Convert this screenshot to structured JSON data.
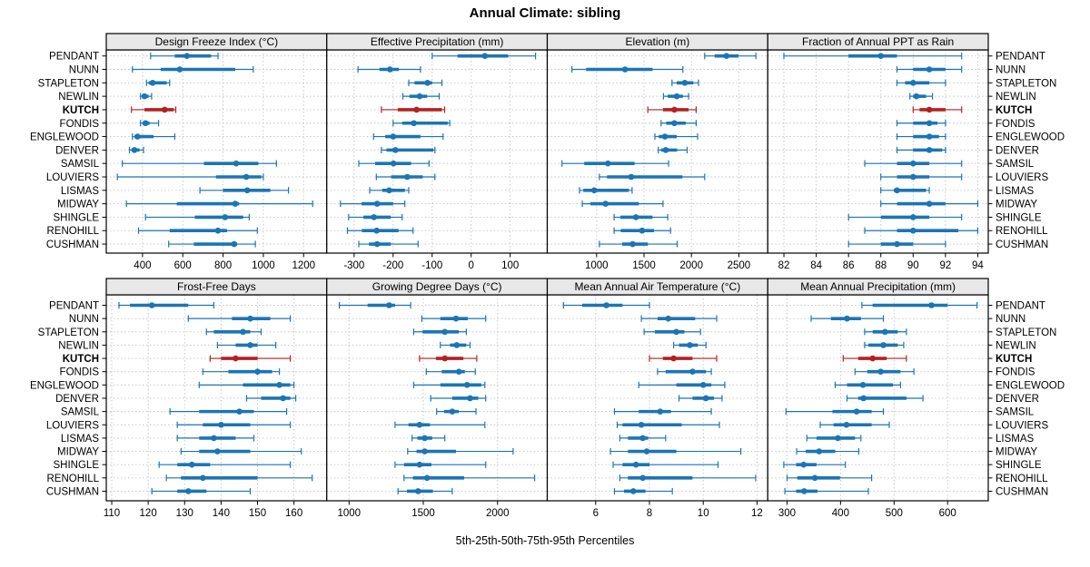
{
  "title": "Annual Climate: sibling",
  "x_axis_label": "5th-25th-50th-75th-95th Percentiles",
  "stations": [
    "PENDANT",
    "NUNN",
    "STAPLETON",
    "NEWLIN",
    "KUTCH",
    "FONDIS",
    "ENGLEWOOD",
    "DENVER",
    "SAMSIL",
    "LOUVIERS",
    "LISMAS",
    "MIDWAY",
    "SHINGLE",
    "RENOHILL",
    "CUSHMAN"
  ],
  "highlighted_station": "KUTCH",
  "percentile_levels": [
    5,
    25,
    50,
    75,
    95
  ],
  "colors": {
    "series": "#1b75b5",
    "highlight": "#b22222",
    "grid": "#c3c3c3",
    "strip_bg": "#e8e8e8",
    "border": "#000000",
    "background": "#ffffff"
  },
  "chart_data": [
    {
      "type": "dotplot-interval",
      "row": 0,
      "col": 0,
      "title": "Design Freeze Index (°C)",
      "xlim": [
        220,
        1315
      ],
      "ticks": [
        400,
        600,
        800,
        1000,
        1200
      ],
      "series": [
        [
          440,
          560,
          620,
          740,
          775
        ],
        [
          350,
          490,
          585,
          860,
          950
        ],
        [
          420,
          430,
          450,
          520,
          535
        ],
        [
          390,
          400,
          410,
          430,
          445
        ],
        [
          345,
          410,
          510,
          555,
          565
        ],
        [
          390,
          400,
          415,
          435,
          480
        ],
        [
          350,
          360,
          375,
          455,
          560
        ],
        [
          335,
          345,
          360,
          385,
          405
        ],
        [
          300,
          705,
          865,
          975,
          1065
        ],
        [
          275,
          765,
          915,
          990,
          1000
        ],
        [
          685,
          800,
          920,
          1035,
          1125
        ],
        [
          320,
          570,
          860,
          880,
          1245
        ],
        [
          415,
          660,
          810,
          900,
          930
        ],
        [
          380,
          535,
          775,
          820,
          970
        ],
        [
          530,
          655,
          855,
          870,
          960
        ]
      ]
    },
    {
      "type": "dotplot-interval",
      "row": 0,
      "col": 1,
      "title": "Effective Precipitation (mm)",
      "xlim": [
        -370,
        195
      ],
      "ticks": [
        -300,
        -200,
        -100,
        0,
        100
      ],
      "series": [
        [
          -100,
          -35,
          35,
          95,
          165
        ],
        [
          -290,
          -235,
          -208,
          -185,
          -130
        ],
        [
          -160,
          -145,
          -112,
          -100,
          -75
        ],
        [
          -175,
          -158,
          -132,
          -113,
          -82
        ],
        [
          -230,
          -188,
          -140,
          -75,
          -68
        ],
        [
          -200,
          -177,
          -147,
          -60,
          -55
        ],
        [
          -250,
          -220,
          -200,
          -130,
          -72
        ],
        [
          -230,
          -217,
          -194,
          -97,
          -93
        ],
        [
          -288,
          -246,
          -199,
          -154,
          -108
        ],
        [
          -243,
          -205,
          -164,
          -124,
          -93
        ],
        [
          -260,
          -228,
          -210,
          -170,
          -160
        ],
        [
          -335,
          -281,
          -241,
          -200,
          -170
        ],
        [
          -314,
          -276,
          -249,
          -206,
          -177
        ],
        [
          -317,
          -280,
          -242,
          -186,
          -149
        ],
        [
          -288,
          -262,
          -241,
          -206,
          -136
        ]
      ]
    },
    {
      "type": "dotplot-interval",
      "row": 0,
      "col": 2,
      "title": "Elevation (m)",
      "xlim": [
        480,
        2805
      ],
      "ticks": [
        1000,
        1500,
        2000,
        2500
      ],
      "series": [
        [
          2140,
          2245,
          2370,
          2495,
          2680
        ],
        [
          740,
          890,
          1300,
          1590,
          1910
        ],
        [
          1795,
          1845,
          1930,
          2020,
          2075
        ],
        [
          1705,
          1750,
          1845,
          1910,
          1970
        ],
        [
          1540,
          1700,
          1820,
          1970,
          2050
        ],
        [
          1680,
          1735,
          1820,
          1940,
          2050
        ],
        [
          1615,
          1655,
          1720,
          1845,
          2065
        ],
        [
          1650,
          1680,
          1730,
          1850,
          1955
        ],
        [
          635,
          870,
          1120,
          1400,
          1760
        ],
        [
          1030,
          1110,
          1365,
          1905,
          2140
        ],
        [
          820,
          860,
          975,
          1340,
          1375
        ],
        [
          850,
          935,
          1095,
          1445,
          1700
        ],
        [
          1185,
          1250,
          1415,
          1590,
          1750
        ],
        [
          1185,
          1255,
          1480,
          1605,
          1780
        ],
        [
          1030,
          1270,
          1380,
          1540,
          1850
        ]
      ]
    },
    {
      "type": "dotplot-interval",
      "row": 0,
      "col": 3,
      "title": "Fraction of Annual PPT as Rain",
      "xlim": [
        81.0,
        94.65
      ],
      "ticks": [
        82,
        84,
        86,
        88,
        90,
        92,
        94
      ],
      "series": [
        [
          82,
          86,
          88,
          89,
          93
        ],
        [
          89,
          90,
          91,
          92,
          93
        ],
        [
          89,
          89.5,
          90,
          91,
          92
        ],
        [
          89.8,
          90,
          90.2,
          90.8,
          91.2
        ],
        [
          90,
          90.4,
          91,
          92,
          93
        ],
        [
          89,
          90,
          91,
          91.5,
          92
        ],
        [
          89,
          90,
          91,
          91.6,
          92
        ],
        [
          89,
          90,
          91,
          91.8,
          92
        ],
        [
          87,
          89,
          90,
          91,
          93
        ],
        [
          88,
          89,
          90,
          91,
          93
        ],
        [
          88,
          88.8,
          89,
          90.8,
          91
        ],
        [
          88,
          89,
          91,
          92,
          94
        ],
        [
          86,
          88,
          90,
          91,
          93
        ],
        [
          87,
          89,
          90,
          92.8,
          94
        ],
        [
          86,
          88,
          89,
          90,
          92
        ]
      ]
    },
    {
      "type": "dotplot-interval",
      "row": 1,
      "col": 0,
      "title": "Frost-Free Days",
      "xlim": [
        108.5,
        169
      ],
      "ticks": [
        110,
        120,
        130,
        140,
        150,
        160
      ],
      "series": [
        [
          112,
          115,
          121,
          131,
          138
        ],
        [
          131,
          143,
          148,
          153.5,
          159
        ],
        [
          136,
          138,
          146,
          148,
          151
        ],
        [
          139,
          144,
          148,
          150,
          155
        ],
        [
          137,
          140,
          144,
          150,
          159
        ],
        [
          135,
          142,
          150,
          154,
          156
        ],
        [
          134,
          146,
          156,
          159,
          160
        ],
        [
          147,
          151,
          157,
          159,
          160.5
        ],
        [
          126,
          134,
          145,
          149,
          158
        ],
        [
          128,
          135,
          140,
          148,
          159
        ],
        [
          128,
          134,
          138,
          144,
          149
        ],
        [
          129,
          134,
          139,
          148,
          162
        ],
        [
          123,
          128,
          132,
          137,
          159
        ],
        [
          125,
          129,
          135,
          150,
          165
        ],
        [
          121,
          128,
          131,
          136,
          148
        ]
      ]
    },
    {
      "type": "dotplot-interval",
      "row": 1,
      "col": 1,
      "title": "Growing Degree Days (°C)",
      "xlim": [
        850,
        2335
      ],
      "ticks": [
        1000,
        1500,
        2000
      ],
      "series": [
        [
          935,
          1125,
          1270,
          1310,
          1415
        ],
        [
          1490,
          1615,
          1720,
          1800,
          1920
        ],
        [
          1435,
          1495,
          1645,
          1740,
          1790
        ],
        [
          1615,
          1680,
          1725,
          1790,
          1815
        ],
        [
          1475,
          1585,
          1645,
          1770,
          1860
        ],
        [
          1520,
          1625,
          1740,
          1780,
          1850
        ],
        [
          1435,
          1615,
          1795,
          1890,
          1915
        ],
        [
          1550,
          1695,
          1815,
          1870,
          1920
        ],
        [
          1590,
          1640,
          1695,
          1740,
          1855
        ],
        [
          1310,
          1400,
          1475,
          1545,
          1915
        ],
        [
          1425,
          1460,
          1510,
          1560,
          1645
        ],
        [
          1395,
          1455,
          1510,
          1720,
          2105
        ],
        [
          1310,
          1370,
          1475,
          1555,
          1920
        ],
        [
          1370,
          1430,
          1525,
          1775,
          2250
        ],
        [
          1330,
          1390,
          1465,
          1565,
          1695
        ]
      ]
    },
    {
      "type": "dotplot-interval",
      "row": 1,
      "col": 2,
      "title": "Mean Annual Air Temperature (°C)",
      "xlim": [
        4.2,
        12.4
      ],
      "ticks": [
        6,
        8,
        10,
        12
      ],
      "series": [
        [
          4.8,
          5.5,
          6.4,
          7.0,
          8.0
        ],
        [
          7.7,
          8.3,
          8.7,
          9.7,
          10.5
        ],
        [
          7.8,
          8.2,
          9.0,
          9.3,
          9.9
        ],
        [
          8.9,
          9.1,
          9.5,
          9.8,
          10.1
        ],
        [
          8.0,
          8.5,
          8.9,
          9.6,
          10.5
        ],
        [
          8.3,
          8.6,
          9.6,
          10.1,
          10.3
        ],
        [
          7.6,
          9.0,
          10.0,
          10.3,
          10.8
        ],
        [
          9.1,
          9.6,
          10.1,
          10.4,
          10.7
        ],
        [
          6.7,
          7.6,
          8.4,
          8.8,
          10.3
        ],
        [
          6.8,
          7.0,
          7.7,
          9.2,
          10.6
        ],
        [
          6.9,
          7.2,
          7.75,
          7.95,
          8.6
        ],
        [
          6.55,
          7.2,
          7.9,
          9.0,
          11.4
        ],
        [
          6.65,
          7.0,
          7.5,
          8.0,
          10.55
        ],
        [
          6.9,
          7.2,
          7.75,
          9.6,
          11.95
        ],
        [
          6.7,
          7.05,
          7.4,
          7.85,
          8.85
        ]
      ]
    },
    {
      "type": "dotplot-interval",
      "row": 1,
      "col": 3,
      "title": "Mean Annual Precipitation (mm)",
      "xlim": [
        264,
        676
      ],
      "ticks": [
        300,
        400,
        500,
        600
      ],
      "series": [
        [
          440,
          460,
          570,
          600,
          655
        ],
        [
          345,
          382,
          412,
          438,
          480
        ],
        [
          445,
          460,
          483,
          507,
          523
        ],
        [
          445,
          452,
          480,
          507,
          518
        ],
        [
          405,
          433,
          460,
          486,
          523
        ],
        [
          427,
          450,
          475,
          512,
          537
        ],
        [
          390,
          412,
          442,
          498,
          512
        ],
        [
          412,
          433,
          443,
          523,
          554
        ],
        [
          298,
          385,
          430,
          458,
          480
        ],
        [
          362,
          387,
          411,
          458,
          491
        ],
        [
          337,
          355,
          395,
          427,
          438
        ],
        [
          318,
          335,
          360,
          390,
          434
        ],
        [
          294,
          317,
          331,
          355,
          409
        ],
        [
          300,
          319,
          352,
          399,
          458
        ],
        [
          296,
          317,
          332,
          357,
          452
        ]
      ]
    }
  ]
}
